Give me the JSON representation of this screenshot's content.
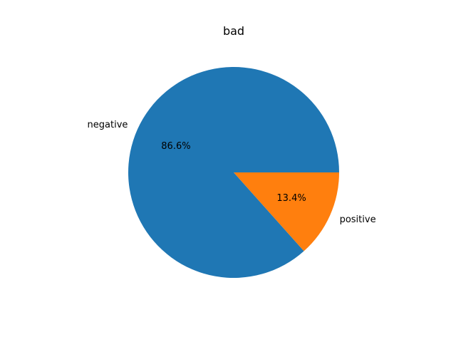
{
  "chart_data": {
    "type": "pie",
    "title": "bad",
    "slices": [
      {
        "label": "negative",
        "value": 86.6,
        "pct_label": "86.6%",
        "color": "#1f77b4"
      },
      {
        "label": "positive",
        "value": 13.4,
        "pct_label": "13.4%",
        "color": "#ff7f0e"
      }
    ],
    "start_angle_deg": 0,
    "direction": "counterclockwise",
    "legend": "none"
  }
}
